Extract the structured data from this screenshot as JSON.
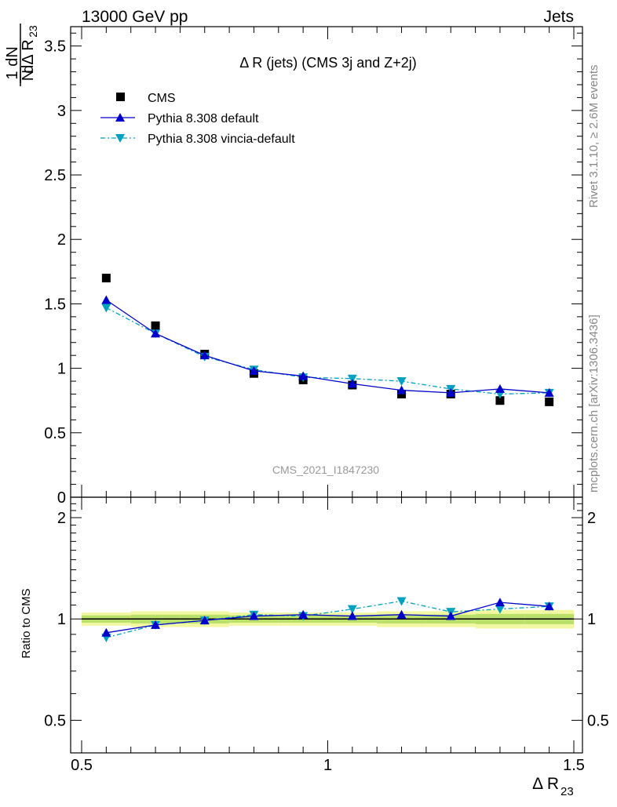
{
  "header": {
    "left": "13000 GeV pp",
    "right": "Jets"
  },
  "side": {
    "rivet": "Rivet 3.1.10, ≥ 2.6M events",
    "mcplots": "mcplots.cern.ch [arXiv:1306.3436]"
  },
  "chart_data": {
    "type": "scatter",
    "title": "Δ R (jets) (CMS 3j and Z+2j)",
    "watermark": "CMS_2021_I1847230",
    "ylabel_main": {
      "num": "1",
      "den": "N",
      "frac_num": "dN",
      "frac_den": "dΔ R",
      "sub": "23"
    },
    "ylabel_ratio": "Ratio to CMS",
    "xlabel": {
      "text": "Δ R",
      "sub": "23"
    },
    "xlim": [
      0.5,
      1.5
    ],
    "ylim_main": [
      0,
      3.65
    ],
    "ylim_ratio": [
      0.4,
      2.3
    ],
    "x_ticks": [
      0.5,
      1,
      1.5
    ],
    "x_tick_labels": [
      "0.5",
      "1",
      "1.5"
    ],
    "y_ticks_main": [
      0,
      0.5,
      1,
      1.5,
      2,
      2.5,
      3,
      3.5
    ],
    "y_tick_labels_main": [
      "0",
      "0.5",
      "1",
      "1.5",
      "2",
      "2.5",
      "3",
      "3.5"
    ],
    "y_ticks_ratio": [
      0.5,
      1,
      2
    ],
    "y_tick_labels_ratio": [
      "0.5",
      "1",
      "2"
    ],
    "bin_edges": [
      0.5,
      0.6,
      0.7,
      0.8,
      0.9,
      1.0,
      1.1,
      1.2,
      1.3,
      1.4,
      1.5
    ],
    "x": [
      0.55,
      0.65,
      0.75,
      0.85,
      0.95,
      1.05,
      1.15,
      1.25,
      1.35,
      1.45
    ],
    "legend_position": "top-left",
    "series": [
      {
        "name": "CMS",
        "kind": "data",
        "color": "#000000",
        "values": [
          1.7,
          1.33,
          1.11,
          0.96,
          0.91,
          0.87,
          0.8,
          0.8,
          0.75,
          0.74
        ],
        "band_ratio_err": [
          0.025,
          0.03,
          0.03,
          0.025,
          0.025,
          0.025,
          0.03,
          0.03,
          0.035,
          0.035
        ]
      },
      {
        "name": "Pythia 8.308 default",
        "kind": "mc",
        "color": "#0000cc",
        "values": [
          1.53,
          1.27,
          1.1,
          0.98,
          0.94,
          0.88,
          0.83,
          0.81,
          0.84,
          0.81
        ],
        "ratio": [
          0.91,
          0.96,
          0.99,
          1.02,
          1.03,
          1.02,
          1.03,
          1.02,
          1.12,
          1.09
        ]
      },
      {
        "name": "Pythia 8.308 vincia-default",
        "kind": "mc",
        "color": "#00a0c0",
        "values": [
          1.47,
          1.27,
          1.09,
          0.99,
          0.93,
          0.92,
          0.9,
          0.84,
          0.8,
          0.81
        ],
        "ratio": [
          0.88,
          0.96,
          0.99,
          1.03,
          1.02,
          1.07,
          1.13,
          1.05,
          1.07,
          1.09
        ]
      }
    ]
  }
}
